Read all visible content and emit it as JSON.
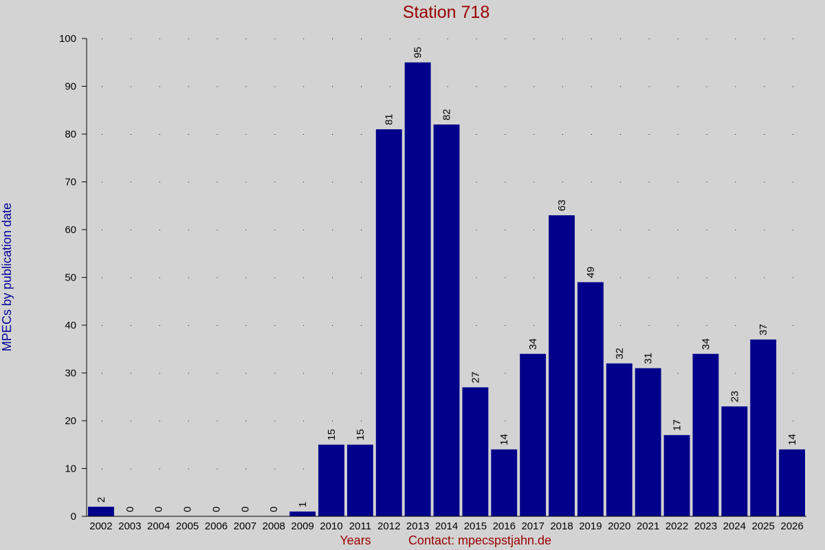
{
  "chart_data": {
    "type": "bar",
    "title": "Station 718",
    "xlabel": "Years",
    "ylabel": "MPECs by publication date",
    "contact": "Contact: mpecspstjahn.de",
    "categories": [
      "2002",
      "2003",
      "2004",
      "2005",
      "2006",
      "2007",
      "2008",
      "2009",
      "2010",
      "2011",
      "2012",
      "2013",
      "2014",
      "2015",
      "2016",
      "2017",
      "2018",
      "2019",
      "2020",
      "2021",
      "2022",
      "2023",
      "2024",
      "2025",
      "2026"
    ],
    "values": [
      2,
      0,
      0,
      0,
      0,
      0,
      0,
      1,
      15,
      15,
      81,
      95,
      82,
      27,
      14,
      34,
      63,
      49,
      32,
      31,
      17,
      34,
      23,
      37,
      14
    ],
    "data_labels": [
      "2",
      "0",
      "0",
      "0",
      "0",
      "0",
      "0",
      "1",
      "15",
      "15",
      "81",
      "95",
      "82",
      "27",
      "14",
      "34",
      "63",
      "49",
      "32",
      "31",
      "17",
      "34",
      "23",
      "37",
      "14"
    ],
    "yticks": [
      "0",
      "10",
      "20",
      "30",
      "40",
      "50",
      "60",
      "70",
      "80",
      "90",
      "100"
    ],
    "ylim": [
      0,
      100
    ],
    "grid": "dotted",
    "bar_color": "#00008b",
    "title_color": "#990000",
    "ylabel_color": "#000099",
    "background": "#d3d3d3"
  }
}
